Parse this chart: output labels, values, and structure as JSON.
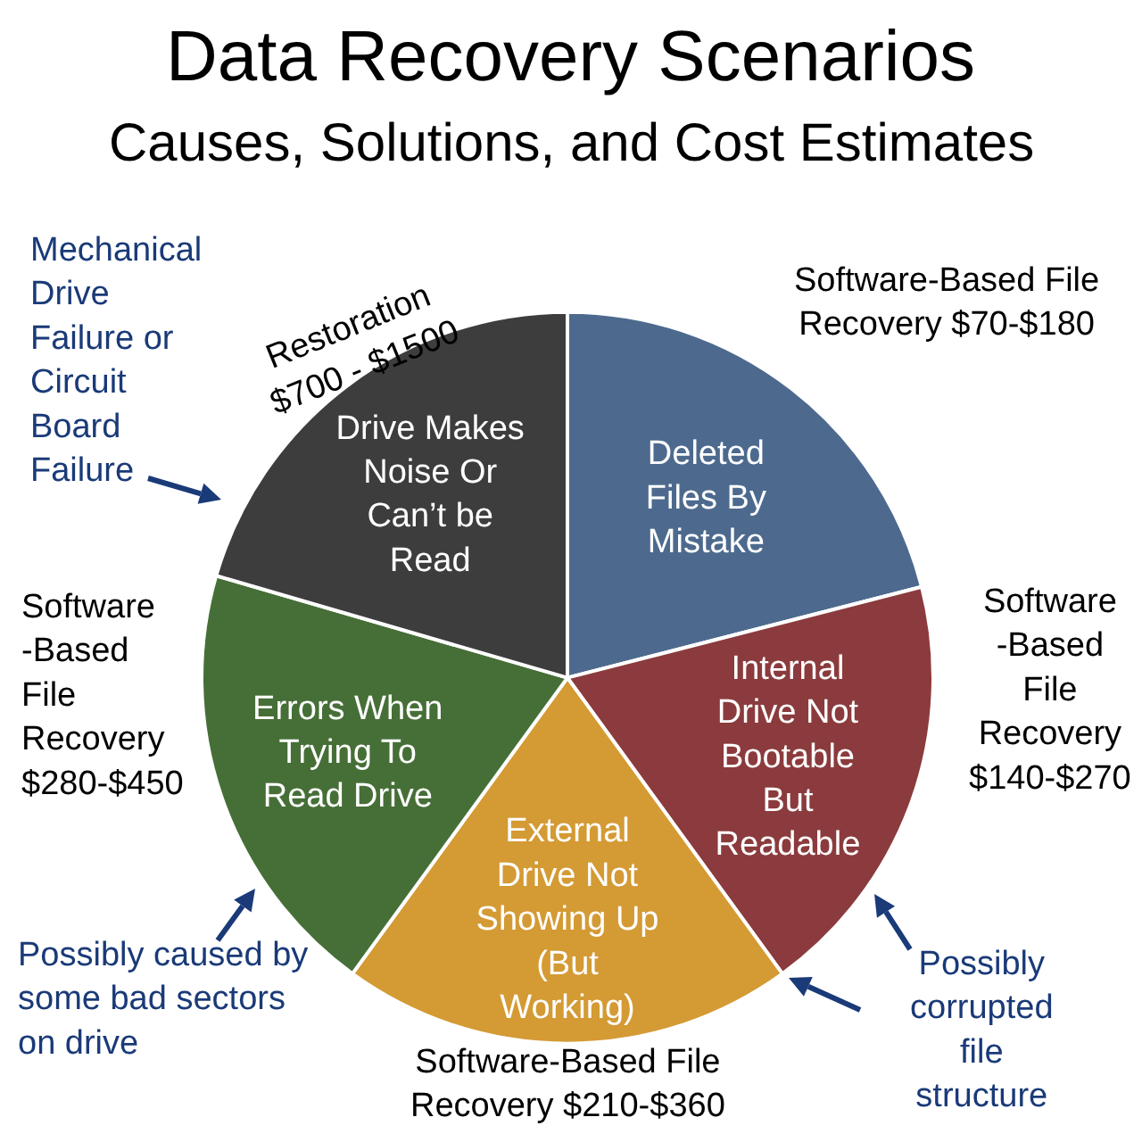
{
  "chart_data": {
    "type": "pie",
    "title": "Data Recovery Scenarios",
    "subtitle": "Causes, Solutions, and Cost Estimates",
    "categories": [
      "Deleted Files By Mistake",
      "Internal Drive Not Bootable But Readable",
      "External Drive Not Showing Up (But Working)",
      "Errors When Trying To Read Drive",
      "Drive Makes Noise Or Can’t be Read"
    ],
    "values": [
      21,
      19,
      20,
      19.5,
      20.5
    ],
    "colors": [
      "#4d6a8e",
      "#8b3b3d",
      "#d49a34",
      "#466f37",
      "#3d3d3d"
    ],
    "annotations": [
      "Mechanical Drive Failure or Circuit Board Failure",
      "Restoration $700 - $1500",
      "Software-Based File Recovery $70-$180",
      "Software-Based File Recovery $140-$270",
      "Possibly corrupted file structure",
      "Software-Based File Recovery $210-$360",
      "Possibly caused by some bad sectors on drive",
      "Software-Based File Recovery $280-$450"
    ],
    "legend": false
  }
}
